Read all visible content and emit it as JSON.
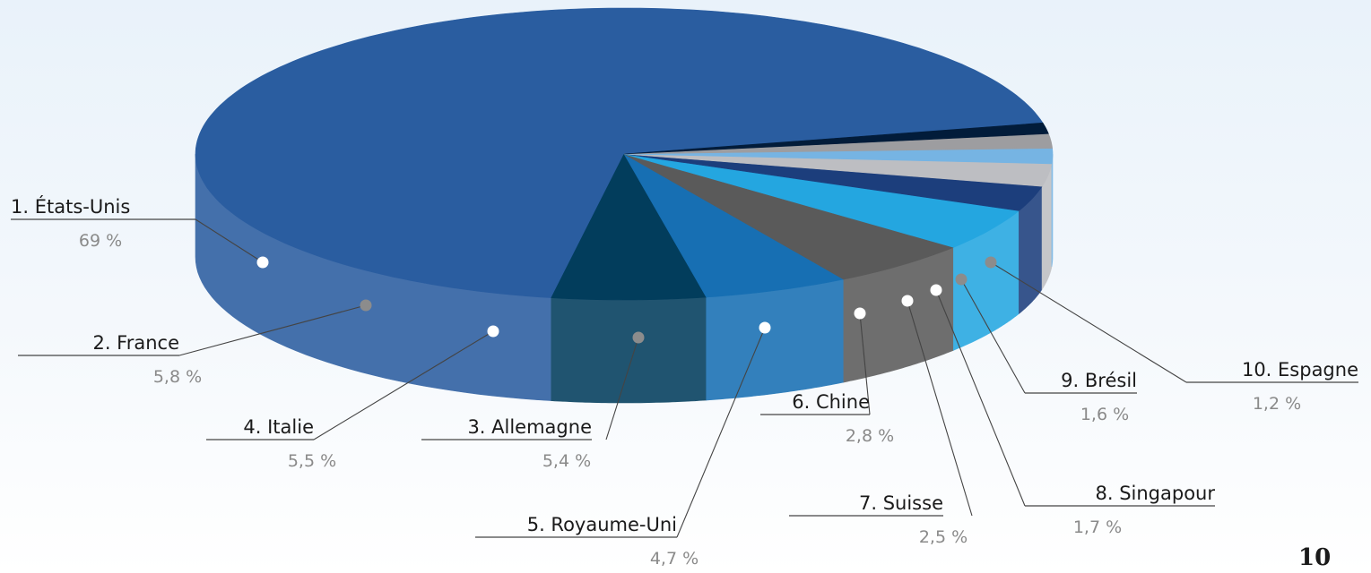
{
  "chart_data": {
    "type": "pie",
    "labels": [
      "1. États-Unis",
      "2. France",
      "3. Allemagne",
      "4. Italie",
      "5. Royaume-Uni",
      "6. Chine",
      "7. Suisse",
      "8. Singapour",
      "9. Brésil",
      "10. Espagne"
    ],
    "values": [
      69,
      5.8,
      5.4,
      5.5,
      4.7,
      2.8,
      2.5,
      1.7,
      1.6,
      1.2
    ],
    "value_labels": [
      "69 %",
      "5,8 %",
      "5,4 %",
      "5,5 %",
      "4,7 %",
      "2,8 %",
      "2,5 %",
      "1,7 %",
      "1,6 %",
      "1,2 %"
    ],
    "colors": [
      "#2a5da0",
      "#023d5c",
      "#5a5a5a",
      "#176fb3",
      "#24a6e0",
      "#1c3e7c",
      "#bdbec2",
      "#76b4e3",
      "#9d9da0",
      "#021c3a"
    ],
    "three_d": true
  },
  "page_number": "10"
}
